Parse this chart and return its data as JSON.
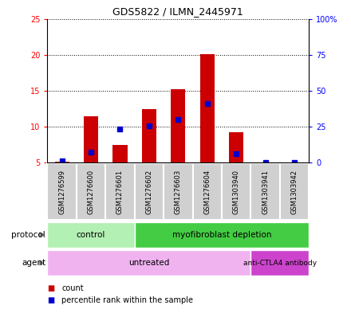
{
  "title": "GDS5822 / ILMN_2445971",
  "samples": [
    "GSM1276599",
    "GSM1276600",
    "GSM1276601",
    "GSM1276602",
    "GSM1276603",
    "GSM1276604",
    "GSM1303940",
    "GSM1303941",
    "GSM1303942"
  ],
  "count_values": [
    5.1,
    11.5,
    7.5,
    12.4,
    15.2,
    20.1,
    9.2,
    5.0,
    5.0
  ],
  "percentile_values": [
    5.3,
    6.5,
    9.7,
    10.1,
    11.0,
    13.2,
    6.3,
    5.0,
    5.0
  ],
  "ylim_left": [
    5,
    25
  ],
  "ylim_right": [
    0,
    100
  ],
  "yticks_left": [
    5,
    10,
    15,
    20,
    25
  ],
  "yticks_right": [
    0,
    25,
    50,
    75,
    100
  ],
  "ytick_labels_right": [
    "0",
    "25",
    "50",
    "75",
    "100%"
  ],
  "bar_color": "#cc0000",
  "dot_color": "#0000cc",
  "bar_width": 0.5,
  "protocol_control": [
    0,
    1,
    2
  ],
  "protocol_myo": [
    3,
    4,
    5,
    6,
    7,
    8
  ],
  "agent_untreated": [
    0,
    1,
    2,
    3,
    4,
    5,
    6
  ],
  "agent_anti": [
    7,
    8
  ],
  "protocol_control_color": "#b3f0b3",
  "protocol_myo_color": "#44cc44",
  "agent_untreated_color": "#f0b3f0",
  "agent_anti_color": "#cc44cc",
  "sample_box_color": "#d0d0d0",
  "background_color": "#ffffff",
  "legend_count": "count",
  "legend_pct": "percentile rank within the sample",
  "label_protocol": "protocol",
  "label_agent": "agent",
  "label_control": "control",
  "label_myo": "myofibroblast depletion",
  "label_untreated": "untreated",
  "label_anti": "anti-CTLA4 antibody"
}
